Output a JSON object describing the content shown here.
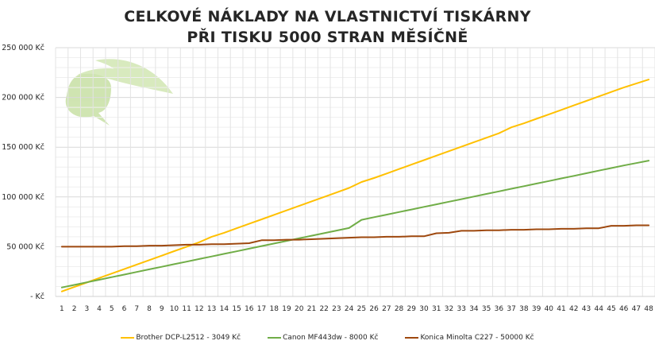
{
  "chart_data": {
    "type": "line",
    "title": "CELKOVÉ NÁKLADY NA VLASTNICTVÍ TISKÁRNY PŘI TISKU 5000 STRAN MĚSÍČNĚ",
    "title_lines": [
      "CELKOVÉ NÁKLADY NA VLASTNICTVÍ TISKÁRNY",
      "PŘI TISKU 5000 STRAN MĚSÍČNĚ"
    ],
    "xlabel": "",
    "ylabel": "",
    "ylim": [
      0,
      250000
    ],
    "y_ticks": [
      0,
      50000,
      100000,
      150000,
      200000,
      250000
    ],
    "y_tick_labels": [
      "-  Kč",
      "50 000 Kč",
      "100 000 Kč",
      "150 000 Kč",
      "200 000 Kč",
      "250 000 Kč"
    ],
    "x": [
      1,
      2,
      3,
      4,
      5,
      6,
      7,
      8,
      9,
      10,
      11,
      12,
      13,
      14,
      15,
      16,
      17,
      18,
      19,
      20,
      21,
      22,
      23,
      24,
      25,
      26,
      27,
      28,
      29,
      30,
      31,
      32,
      33,
      34,
      35,
      36,
      37,
      38,
      39,
      40,
      41,
      42,
      43,
      44,
      45,
      46,
      47,
      48
    ],
    "grid": {
      "major": true,
      "minor": true,
      "vertical": true
    },
    "legend_position": "bottom",
    "series": [
      {
        "name": "Brother DCP-L2512 - 3049 Kč",
        "color": "#FFC000",
        "values": [
          5000,
          9500,
          14000,
          18500,
          23000,
          27500,
          32000,
          36500,
          41000,
          45500,
          50000,
          54500,
          60000,
          64000,
          68500,
          73000,
          77500,
          82000,
          86500,
          91000,
          95500,
          100000,
          104500,
          109000,
          115000,
          119000,
          123500,
          128000,
          132500,
          137000,
          141500,
          146000,
          150500,
          155000,
          159500,
          164000,
          170000,
          174000,
          178500,
          183000,
          187500,
          192000,
          196500,
          201000,
          205500,
          210000,
          214000,
          218000
        ]
      },
      {
        "name": "Canon MF443dw - 8000 Kč",
        "color": "#70AD47",
        "values": [
          9000,
          11600,
          14200,
          16800,
          19400,
          22000,
          24600,
          27200,
          29800,
          32400,
          35000,
          37600,
          40200,
          42800,
          45400,
          48000,
          50600,
          53200,
          55800,
          58400,
          61000,
          63600,
          66200,
          68800,
          77000,
          79600,
          82200,
          84800,
          87400,
          90000,
          92600,
          95200,
          97800,
          100400,
          103000,
          105600,
          108200,
          110800,
          113400,
          116000,
          118600,
          121200,
          123800,
          126400,
          129000,
          131600,
          134000,
          136500
        ]
      },
      {
        "name": "Konica Minolta C227 - 50000 Kč",
        "color": "#9E480E",
        "values": [
          50000,
          50000,
          50000,
          50000,
          50000,
          50500,
          50500,
          51000,
          51000,
          51500,
          52000,
          52000,
          52500,
          52500,
          53000,
          53500,
          56500,
          56500,
          57000,
          57000,
          57500,
          58000,
          58500,
          59000,
          59500,
          59500,
          60000,
          60000,
          60500,
          60500,
          63500,
          64000,
          66000,
          66000,
          66500,
          66500,
          67000,
          67000,
          67500,
          67500,
          68000,
          68000,
          68500,
          68500,
          71000,
          71000,
          71500,
          71500
        ]
      }
    ]
  },
  "legend": {
    "items": [
      {
        "label": "Brother DCP-L2512 - 3049 Kč",
        "color": "#FFC000"
      },
      {
        "label": "Canon MF443dw - 8000 Kč",
        "color": "#70AD47"
      },
      {
        "label": "Konica Minolta C227 - 50000 Kč",
        "color": "#9E480E"
      }
    ]
  },
  "decoration": {
    "watermark": "leaf-logo"
  }
}
